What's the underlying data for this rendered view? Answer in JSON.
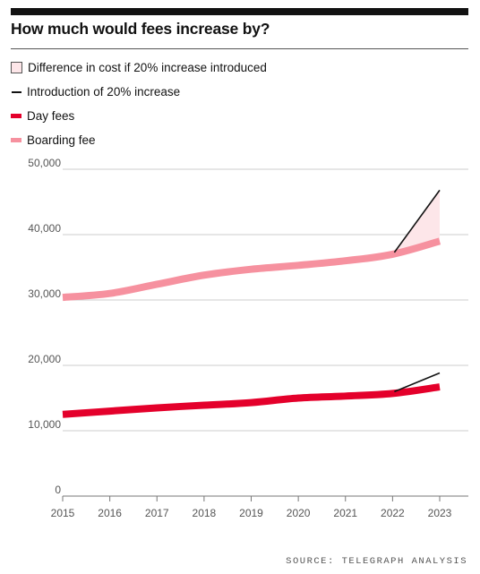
{
  "title": "How much would fees increase by?",
  "source": "SOURCE: TELEGRAPH ANALYSIS",
  "legend": [
    {
      "label": "Difference in cost if 20% increase introduced",
      "swatch": "box"
    },
    {
      "label": "Introduction of 20% increase",
      "swatch": "black"
    },
    {
      "label": "Day fees",
      "swatch": "red"
    },
    {
      "label": "Boarding fee",
      "swatch": "pink"
    }
  ],
  "colors": {
    "day": "#e4002b",
    "boarding": "#f6919f",
    "increase": "#121212",
    "difference_fill": "#fde6e9",
    "grid": "#cccccc",
    "axis_text": "#555555"
  },
  "chart_data": {
    "type": "line",
    "title": "How much would fees increase by?",
    "x": [
      "2015",
      "2016",
      "2017",
      "2018",
      "2019",
      "2020",
      "2021",
      "2022",
      "2023"
    ],
    "ylim": [
      0,
      50000
    ],
    "yticks": [
      0,
      10000,
      20000,
      30000,
      40000,
      50000
    ],
    "ytick_labels": [
      "0",
      "10,000",
      "20,000",
      "30,000",
      "40,000",
      "50,000"
    ],
    "grid": true,
    "legend_position": "top-left",
    "series": [
      {
        "name": "Day fees",
        "key": "day",
        "values": [
          12500,
          13000,
          13500,
          13900,
          14300,
          15000,
          15300,
          15700,
          16700
        ]
      },
      {
        "name": "Boarding fee",
        "key": "boarding",
        "values": [
          30400,
          31000,
          32400,
          33800,
          34700,
          35300,
          36000,
          37000,
          39000
        ]
      }
    ],
    "increase_lines": [
      {
        "series": "day",
        "x": [
          "2022",
          "2023"
        ],
        "values": [
          15700,
          18840
        ]
      },
      {
        "series": "boarding",
        "x": [
          "2022",
          "2023"
        ],
        "values": [
          37000,
          46800
        ]
      }
    ]
  }
}
